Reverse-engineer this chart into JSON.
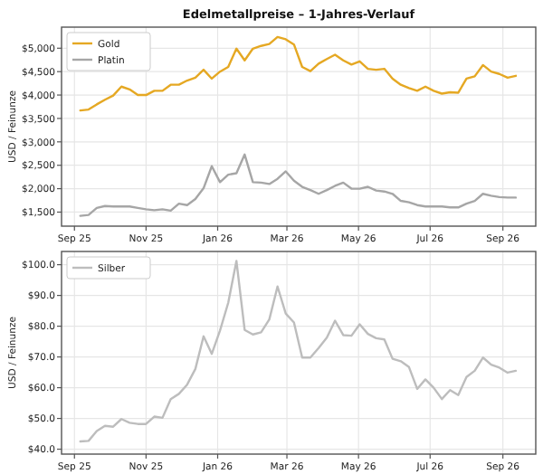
{
  "chart_data": [
    {
      "type": "line",
      "title": "Edelmetallpreise – 1-Jahres-Verlauf",
      "ylabel": "USD / Feinunze",
      "grid": true,
      "legend": "top left",
      "x": [
        "2025-09-06",
        "2025-09-13",
        "2025-09-20",
        "2025-09-27",
        "2025-10-04",
        "2025-10-11",
        "2025-10-18",
        "2025-10-25",
        "2025-11-01",
        "2025-11-08",
        "2025-11-15",
        "2025-11-22",
        "2025-11-29",
        "2025-12-06",
        "2025-12-13",
        "2025-12-20",
        "2025-12-27",
        "2026-01-03",
        "2026-01-10",
        "2026-01-17",
        "2026-01-24",
        "2026-01-31",
        "2026-02-07",
        "2026-02-14",
        "2026-02-21",
        "2026-02-28",
        "2026-03-07",
        "2026-03-14",
        "2026-03-21",
        "2026-03-28",
        "2026-04-04",
        "2026-04-11",
        "2026-04-18",
        "2026-04-25",
        "2026-05-02",
        "2026-05-09",
        "2026-05-16",
        "2026-05-23",
        "2026-05-30",
        "2026-06-06",
        "2026-06-13",
        "2026-06-20",
        "2026-06-27",
        "2026-07-04",
        "2026-07-11",
        "2026-07-18",
        "2026-07-25",
        "2026-08-01",
        "2026-08-08",
        "2026-08-15",
        "2026-08-22",
        "2026-08-29",
        "2026-09-05",
        "2026-09-12"
      ],
      "xlim": [
        "2025-08-21",
        "2026-09-29"
      ],
      "xticks": [
        {
          "value": "2025-09-01",
          "label": "Sep 25"
        },
        {
          "value": "2025-11-01",
          "label": "Nov 25"
        },
        {
          "value": "2026-01-01",
          "label": "Jan 26"
        },
        {
          "value": "2026-03-01",
          "label": "Mar 26"
        },
        {
          "value": "2026-05-01",
          "label": "May 26"
        },
        {
          "value": "2026-07-01",
          "label": "Jul 26"
        },
        {
          "value": "2026-09-01",
          "label": "Sep 26"
        }
      ],
      "ylim": [
        1200,
        5450
      ],
      "yticks": [
        {
          "value": 1500,
          "label": "$1,500"
        },
        {
          "value": 2000,
          "label": "$2,000"
        },
        {
          "value": 2500,
          "label": "$2,500"
        },
        {
          "value": 3000,
          "label": "$3,000"
        },
        {
          "value": 3500,
          "label": "$3,500"
        },
        {
          "value": 4000,
          "label": "$4,000"
        },
        {
          "value": 4500,
          "label": "$4,500"
        },
        {
          "value": 5000,
          "label": "$5,000"
        }
      ],
      "series": [
        {
          "name": "Gold",
          "color": "#e5a823",
          "values": [
            3670,
            3690,
            3800,
            3900,
            3990,
            4180,
            4120,
            4000,
            4000,
            4090,
            4090,
            4220,
            4220,
            4310,
            4370,
            4540,
            4350,
            4500,
            4600,
            4990,
            4740,
            4990,
            5050,
            5090,
            5240,
            5190,
            5080,
            4600,
            4510,
            4670,
            4770,
            4860,
            4740,
            4650,
            4720,
            4560,
            4540,
            4560,
            4350,
            4220,
            4150,
            4090,
            4180,
            4090,
            4030,
            4060,
            4050,
            4350,
            4400,
            4640,
            4500,
            4450,
            4370,
            4410
          ]
        },
        {
          "name": "Platin",
          "color": "#a6a6a6",
          "values": [
            1420,
            1440,
            1590,
            1630,
            1620,
            1620,
            1620,
            1590,
            1560,
            1540,
            1560,
            1530,
            1680,
            1650,
            1780,
            2010,
            2480,
            2140,
            2300,
            2330,
            2730,
            2140,
            2130,
            2100,
            2210,
            2370,
            2170,
            2040,
            1970,
            1890,
            1970,
            2060,
            2130,
            2000,
            2000,
            2040,
            1960,
            1940,
            1890,
            1740,
            1710,
            1650,
            1620,
            1620,
            1620,
            1600,
            1600,
            1680,
            1740,
            1890,
            1850,
            1820,
            1810,
            1810
          ]
        }
      ]
    },
    {
      "type": "line",
      "ylabel": "USD / Feinunze",
      "grid": true,
      "legend": "top left",
      "x": [
        "2025-09-06",
        "2025-09-13",
        "2025-09-20",
        "2025-09-27",
        "2025-10-04",
        "2025-10-11",
        "2025-10-18",
        "2025-10-25",
        "2025-11-01",
        "2025-11-08",
        "2025-11-15",
        "2025-11-22",
        "2025-11-29",
        "2025-12-06",
        "2025-12-13",
        "2025-12-20",
        "2025-12-27",
        "2026-01-03",
        "2026-01-10",
        "2026-01-17",
        "2026-01-24",
        "2026-01-31",
        "2026-02-07",
        "2026-02-14",
        "2026-02-21",
        "2026-02-28",
        "2026-03-07",
        "2026-03-14",
        "2026-03-21",
        "2026-03-28",
        "2026-04-04",
        "2026-04-11",
        "2026-04-18",
        "2026-04-25",
        "2026-05-02",
        "2026-05-09",
        "2026-05-16",
        "2026-05-23",
        "2026-05-30",
        "2026-06-06",
        "2026-06-13",
        "2026-06-20",
        "2026-06-27",
        "2026-07-04",
        "2026-07-11",
        "2026-07-18",
        "2026-07-25",
        "2026-08-01",
        "2026-08-08",
        "2026-08-15",
        "2026-08-22",
        "2026-08-29",
        "2026-09-05",
        "2026-09-12"
      ],
      "xlim": [
        "2025-08-21",
        "2026-09-29"
      ],
      "xticks": [
        {
          "value": "2025-09-01",
          "label": "Sep 25"
        },
        {
          "value": "2025-11-01",
          "label": "Nov 25"
        },
        {
          "value": "2026-01-01",
          "label": "Jan 26"
        },
        {
          "value": "2026-03-01",
          "label": "Mar 26"
        },
        {
          "value": "2026-05-01",
          "label": "May 26"
        },
        {
          "value": "2026-07-01",
          "label": "Jul 26"
        },
        {
          "value": "2026-09-01",
          "label": "Sep 26"
        }
      ],
      "ylim": [
        38.4,
        104.3
      ],
      "yticks": [
        {
          "value": 40,
          "label": "$40.0"
        },
        {
          "value": 50,
          "label": "$50.0"
        },
        {
          "value": 60,
          "label": "$60.0"
        },
        {
          "value": 70,
          "label": "$70.0"
        },
        {
          "value": 80,
          "label": "$80.0"
        },
        {
          "value": 90,
          "label": "$90.0"
        },
        {
          "value": 100,
          "label": "$100.0"
        }
      ],
      "series": [
        {
          "name": "Silber",
          "color": "#bdbdbd",
          "values": [
            42.5,
            42.7,
            45.9,
            47.6,
            47.3,
            49.8,
            48.6,
            48.2,
            48.2,
            50.6,
            50.2,
            56.3,
            58.0,
            61.0,
            66.1,
            76.7,
            71.0,
            78.6,
            87.6,
            101.2,
            78.8,
            77.3,
            78.0,
            82.2,
            92.9,
            84.1,
            81.2,
            69.8,
            69.8,
            72.9,
            76.3,
            81.8,
            77.1,
            76.9,
            80.6,
            77.5,
            76.1,
            75.7,
            69.4,
            68.6,
            66.7,
            59.6,
            62.7,
            60.0,
            56.3,
            59.2,
            57.6,
            63.5,
            65.5,
            69.8,
            67.5,
            66.5,
            64.9,
            65.5
          ]
        }
      ]
    }
  ]
}
